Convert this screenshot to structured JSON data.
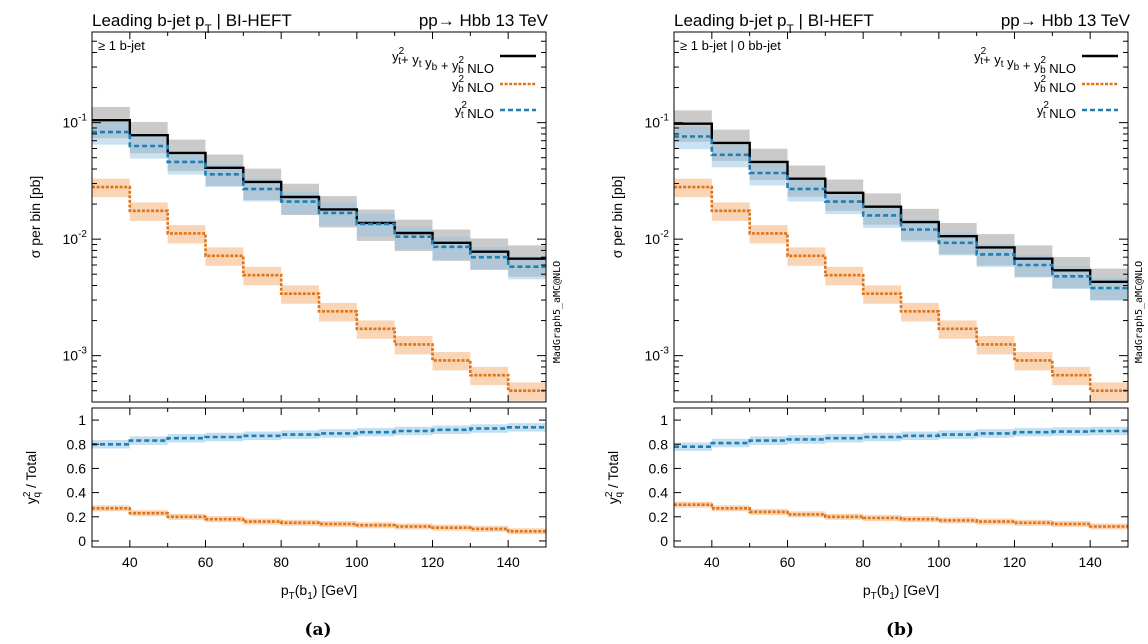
{
  "figure": {
    "side_label": "MadGraph5_aMC@NLO",
    "captions": [
      "(a)",
      "(b)"
    ]
  },
  "colors": {
    "total": "#000000",
    "yb2": "#e07418",
    "yt2": "#1f7fb4"
  },
  "chart_data": [
    {
      "type": "line",
      "title": {
        "left": {
          "pre": "Leading b-jet p",
          "sub": "T",
          "post": " | BI-HEFT"
        },
        "right": "pp→ Hbb 13 TeV"
      },
      "annotation": "≥ 1 b-jet",
      "legend": [
        {
          "series": "total",
          "parts": [
            [
              "y",
              "t",
              "2"
            ],
            [
              "+ y",
              "t",
              ""
            ],
            [
              " y",
              "b",
              ""
            ],
            [
              " + y",
              "b",
              "2"
            ],
            [
              " NLO",
              "",
              ""
            ]
          ]
        },
        {
          "series": "yb2",
          "parts": [
            [
              "y",
              "b",
              "2"
            ],
            [
              " NLO",
              "",
              ""
            ]
          ]
        },
        {
          "series": "yt2",
          "parts": [
            [
              "y",
              "t",
              "2"
            ],
            [
              " NLO",
              "",
              ""
            ]
          ]
        }
      ],
      "legend_placement": "top-right",
      "xlabel": {
        "pre": "p",
        "sub": "T",
        "mid": "(b",
        "sub2": "1",
        "post": ") [GeV]"
      },
      "ylabel_main": "σ per bin [pb]",
      "ylabel_ratio": {
        "pre": "y",
        "sup": "2",
        "sub": "q",
        "post": " / Total"
      },
      "xlim": [
        30,
        150
      ],
      "ylim_main": [
        0.0004,
        0.6
      ],
      "yscale_main": "log",
      "ylim_ratio": [
        -0.05,
        1.1
      ],
      "x_ticks": [
        "40",
        "60",
        "80",
        "100",
        "120",
        "140"
      ],
      "y_ticks_main": [
        {
          "base": "10",
          "exp": "-1"
        },
        {
          "base": "10",
          "exp": "-2"
        },
        {
          "base": "10",
          "exp": "-3"
        }
      ],
      "y_ticks_ratio": [
        "0",
        "0.2",
        "0.4",
        "0.6",
        "0.8",
        "1"
      ],
      "bin_edges": [
        30,
        40,
        50,
        60,
        70,
        80,
        90,
        100,
        110,
        120,
        130,
        140,
        150
      ],
      "series": [
        {
          "key": "total",
          "values": [
            0.105,
            0.078,
            0.055,
            0.041,
            0.031,
            0.023,
            0.018,
            0.0138,
            0.0113,
            0.0093,
            0.0078,
            0.0068
          ]
        },
        {
          "key": "yb2",
          "values": [
            0.028,
            0.0175,
            0.0112,
            0.0072,
            0.0049,
            0.0034,
            0.0024,
            0.0017,
            0.00125,
            0.00091,
            0.00068,
            0.0005
          ]
        },
        {
          "key": "yt2",
          "values": [
            0.083,
            0.063,
            0.046,
            0.036,
            0.027,
            0.021,
            0.0168,
            0.0135,
            0.0105,
            0.0086,
            0.007,
            0.0058
          ]
        }
      ],
      "ratio_series": [
        {
          "key": "yt2",
          "values": [
            0.8,
            0.83,
            0.85,
            0.86,
            0.87,
            0.88,
            0.89,
            0.9,
            0.91,
            0.92,
            0.93,
            0.94
          ]
        },
        {
          "key": "yb2",
          "values": [
            0.27,
            0.23,
            0.2,
            0.18,
            0.16,
            0.15,
            0.14,
            0.13,
            0.12,
            0.11,
            0.1,
            0.08
          ]
        }
      ]
    },
    {
      "type": "line",
      "title": {
        "left": {
          "pre": "Leading b-jet p",
          "sub": "T",
          "post": " | BI-HEFT"
        },
        "right": "pp→ Hbb 13 TeV"
      },
      "annotation": "≥ 1 b-jet | 0 bb-jet",
      "legend": [
        {
          "series": "total",
          "parts": [
            [
              "y",
              "t",
              "2"
            ],
            [
              "+ y",
              "t",
              ""
            ],
            [
              " y",
              "b",
              ""
            ],
            [
              " + y",
              "b",
              "2"
            ],
            [
              " NLO",
              "",
              ""
            ]
          ]
        },
        {
          "series": "yb2",
          "parts": [
            [
              "y",
              "b",
              "2"
            ],
            [
              " NLO",
              "",
              ""
            ]
          ]
        },
        {
          "series": "yt2",
          "parts": [
            [
              "y",
              "t",
              "2"
            ],
            [
              " NLO",
              "",
              ""
            ]
          ]
        }
      ],
      "legend_placement": "top-right",
      "xlabel": {
        "pre": "p",
        "sub": "T",
        "mid": "(b",
        "sub2": "1",
        "post": ") [GeV]"
      },
      "ylabel_main": "σ per bin [pb]",
      "ylabel_ratio": {
        "pre": "y",
        "sup": "2",
        "sub": "q",
        "post": " / Total"
      },
      "xlim": [
        30,
        150
      ],
      "ylim_main": [
        0.0004,
        0.6
      ],
      "yscale_main": "log",
      "ylim_ratio": [
        -0.05,
        1.1
      ],
      "x_ticks": [
        "40",
        "60",
        "80",
        "100",
        "120",
        "140"
      ],
      "y_ticks_main": [
        {
          "base": "10",
          "exp": "-1"
        },
        {
          "base": "10",
          "exp": "-2"
        },
        {
          "base": "10",
          "exp": "-3"
        }
      ],
      "y_ticks_ratio": [
        "0",
        "0.2",
        "0.4",
        "0.6",
        "0.8",
        "1"
      ],
      "bin_edges": [
        30,
        40,
        50,
        60,
        70,
        80,
        90,
        100,
        110,
        120,
        130,
        140,
        150
      ],
      "series": [
        {
          "key": "total",
          "values": [
            0.098,
            0.067,
            0.046,
            0.033,
            0.025,
            0.019,
            0.014,
            0.0106,
            0.0085,
            0.0068,
            0.0054,
            0.0043
          ]
        },
        {
          "key": "yb2",
          "values": [
            0.028,
            0.0175,
            0.0112,
            0.0072,
            0.0049,
            0.0034,
            0.0024,
            0.0017,
            0.00125,
            0.00091,
            0.00068,
            0.0005
          ]
        },
        {
          "key": "yt2",
          "values": [
            0.076,
            0.053,
            0.037,
            0.027,
            0.021,
            0.016,
            0.0121,
            0.0093,
            0.0074,
            0.006,
            0.0048,
            0.0038
          ]
        }
      ],
      "ratio_series": [
        {
          "key": "yt2",
          "values": [
            0.78,
            0.81,
            0.83,
            0.84,
            0.85,
            0.86,
            0.87,
            0.88,
            0.89,
            0.9,
            0.905,
            0.91
          ]
        },
        {
          "key": "yb2",
          "values": [
            0.3,
            0.27,
            0.24,
            0.22,
            0.2,
            0.19,
            0.18,
            0.17,
            0.16,
            0.15,
            0.14,
            0.12
          ]
        }
      ]
    }
  ]
}
